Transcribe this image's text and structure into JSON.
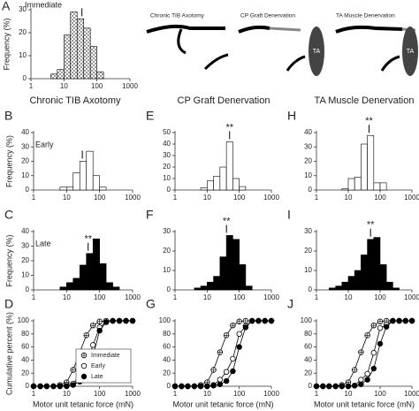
{
  "column_headers": [
    "Chronic TIB Axotomy",
    "CP Graft Denervation",
    "TA Muscle Denervation"
  ],
  "schematics": [
    {
      "title": "Chronic TIB Axotomy"
    },
    {
      "title": "CP Graft Denervation",
      "label": "TA"
    },
    {
      "title": "TA Muscle Denervation",
      "label": "TA"
    }
  ],
  "chart_data": [
    {
      "type": "histogram",
      "panel": "A",
      "label": "Immediate",
      "y_label": "Frequency (%)",
      "color": "#ffffff",
      "pattern": "crosshatch",
      "log_x": true,
      "bins": [
        1.6,
        2.5,
        4,
        6.3,
        10,
        15.8,
        25.1,
        39.8,
        63.1,
        100,
        158,
        251,
        398
      ],
      "values": [
        0,
        0,
        2,
        4,
        19,
        29,
        26,
        22,
        14,
        3,
        0,
        0
      ],
      "mean": 35,
      "xlim": [
        1,
        1000
      ],
      "xticks": [
        1,
        10,
        100,
        1000
      ],
      "ylim": [
        0,
        30
      ],
      "yticks": [
        0,
        10,
        20,
        30
      ]
    },
    {
      "type": "histogram",
      "panel": "B",
      "label": "Early",
      "y_label": "Frequency (%)",
      "color": "#ffffff",
      "log_x": true,
      "bins": [
        1.6,
        2.5,
        4,
        6.3,
        10,
        15.8,
        25.1,
        39.8,
        63.1,
        100,
        158,
        251,
        398
      ],
      "values": [
        0,
        0,
        0,
        2,
        2,
        12,
        20,
        27,
        10,
        2,
        0,
        0
      ],
      "mean": 30,
      "xlim": [
        1,
        1000
      ],
      "xticks": [
        1,
        10,
        100,
        1000
      ],
      "ylim": [
        0,
        40
      ],
      "yticks": [
        0,
        10,
        20,
        30,
        40
      ]
    },
    {
      "type": "histogram",
      "panel": "C",
      "label": "Late",
      "y_label": "Frequency (%)",
      "color": "#000000",
      "annotation": "**",
      "log_x": true,
      "bins": [
        1.6,
        2.5,
        4,
        6.3,
        10,
        15.8,
        25.1,
        39.8,
        63.1,
        100,
        158,
        251,
        398
      ],
      "values": [
        0,
        0,
        0,
        2,
        5,
        8,
        17,
        25,
        35,
        18,
        5,
        2
      ],
      "mean": 45,
      "xlim": [
        1,
        1000
      ],
      "xticks": [
        1,
        10,
        100,
        1000
      ],
      "ylim": [
        0,
        40
      ],
      "yticks": [
        0,
        10,
        20,
        30,
        40
      ]
    },
    {
      "type": "line",
      "panel": "D",
      "y_label": "Cumulative percent (%)",
      "x_label": "Motor unit tetanic force (mN)",
      "log_x": true,
      "legend": "bottom-right",
      "x": [
        1,
        1.6,
        2.5,
        4,
        6.3,
        10,
        15.8,
        25.1,
        39.8,
        63.1,
        100,
        158,
        251,
        398,
        631,
        1000
      ],
      "series": [
        {
          "name": "Immediate",
          "marker": "crossed",
          "color": "#000000",
          "values": [
            0,
            0,
            0,
            0,
            2,
            6,
            25,
            52,
            78,
            93,
            99,
            100,
            100,
            100,
            100,
            100
          ]
        },
        {
          "name": "Early",
          "marker": "open",
          "color": "#000000",
          "values": [
            0,
            0,
            0,
            0,
            0,
            2,
            4,
            16,
            36,
            63,
            90,
            98,
            100,
            100,
            100,
            100
          ]
        },
        {
          "name": "Late",
          "marker": "filled",
          "color": "#000000",
          "values": [
            0,
            0,
            0,
            0,
            0,
            0,
            2,
            7,
            17,
            46,
            85,
            98,
            100,
            100,
            100,
            100
          ]
        }
      ],
      "xlim": [
        1,
        1000
      ],
      "xticks": [
        1,
        10,
        100,
        1000
      ],
      "ylim": [
        0,
        100
      ],
      "yticks": [
        0,
        20,
        40,
        60,
        80,
        100
      ]
    },
    {
      "type": "histogram",
      "panel": "E",
      "color": "#ffffff",
      "annotation": "**",
      "log_x": true,
      "bins": [
        1.6,
        2.5,
        4,
        6.3,
        10,
        15.8,
        25.1,
        39.8,
        63.1,
        100,
        158,
        251,
        398
      ],
      "values": [
        0,
        0,
        0,
        2,
        8,
        12,
        20,
        42,
        10,
        3,
        0,
        0
      ],
      "mean": 50,
      "xlim": [
        1,
        1000
      ],
      "xticks": [
        1,
        10,
        100,
        1000
      ],
      "ylim": [
        0,
        50
      ],
      "yticks": [
        0,
        10,
        20,
        30,
        40,
        50
      ]
    },
    {
      "type": "histogram",
      "panel": "F",
      "color": "#000000",
      "annotation": "**",
      "log_x": true,
      "bins": [
        1.6,
        2.5,
        4,
        6.3,
        10,
        15.8,
        25.1,
        39.8,
        63.1,
        100,
        158,
        251,
        398
      ],
      "values": [
        0,
        0,
        1,
        2,
        4,
        7,
        17,
        28,
        26,
        13,
        2,
        0
      ],
      "mean": 40,
      "xlim": [
        1,
        1000
      ],
      "xticks": [
        1,
        10,
        100,
        1000
      ],
      "ylim": [
        0,
        30
      ],
      "yticks": [
        0,
        10,
        20,
        30
      ]
    },
    {
      "type": "line",
      "panel": "G",
      "x_label": "Motor unit tetanic force (mN)",
      "log_x": true,
      "x": [
        1,
        1.6,
        2.5,
        4,
        6.3,
        10,
        15.8,
        25.1,
        39.8,
        63.1,
        100,
        158,
        251,
        398,
        631,
        1000
      ],
      "series": [
        {
          "marker": "crossed",
          "color": "#000000",
          "values": [
            0,
            0,
            0,
            0,
            2,
            6,
            25,
            52,
            78,
            93,
            99,
            100,
            100,
            100,
            100,
            100
          ]
        },
        {
          "marker": "open",
          "color": "#000000",
          "values": [
            0,
            0,
            0,
            0,
            0,
            0,
            2,
            10,
            22,
            42,
            80,
            92,
            100,
            100,
            100,
            100
          ]
        },
        {
          "marker": "filled",
          "color": "#000000",
          "values": [
            0,
            0,
            0,
            0,
            0,
            0,
            1,
            3,
            8,
            23,
            60,
            90,
            100,
            100,
            100,
            100
          ]
        }
      ],
      "xlim": [
        1,
        1000
      ],
      "xticks": [
        1,
        10,
        100,
        1000
      ],
      "ylim": [
        0,
        100
      ],
      "yticks": [
        0,
        20,
        40,
        60,
        80,
        100
      ]
    },
    {
      "type": "histogram",
      "panel": "H",
      "color": "#ffffff",
      "annotation": "**",
      "log_x": true,
      "bins": [
        1.6,
        2.5,
        4,
        6.3,
        10,
        15.8,
        25.1,
        39.8,
        63.1,
        100,
        158,
        251,
        398
      ],
      "values": [
        0,
        0,
        0,
        1,
        8,
        9,
        32,
        38,
        5,
        5,
        0,
        0
      ],
      "mean": 45,
      "xlim": [
        1,
        1000
      ],
      "xticks": [
        1,
        10,
        100,
        1000
      ],
      "ylim": [
        0,
        40
      ],
      "yticks": [
        0,
        10,
        20,
        30,
        40
      ]
    },
    {
      "type": "histogram",
      "panel": "I",
      "color": "#000000",
      "annotation": "**",
      "log_x": true,
      "bins": [
        1.6,
        2.5,
        4,
        6.3,
        10,
        15.8,
        25.1,
        39.8,
        63.1,
        100,
        158,
        251,
        398
      ],
      "values": [
        0,
        1,
        2,
        4,
        7,
        10,
        18,
        26,
        27,
        13,
        4,
        1
      ],
      "mean": 50,
      "xlim": [
        1,
        1000
      ],
      "xticks": [
        1,
        10,
        100,
        1000
      ],
      "ylim": [
        0,
        30
      ],
      "yticks": [
        0,
        10,
        20,
        30
      ]
    },
    {
      "type": "line",
      "panel": "J",
      "x_label": "Motor unit tetanic force (mN)",
      "log_x": true,
      "x": [
        1,
        1.6,
        2.5,
        4,
        6.3,
        10,
        15.8,
        25.1,
        39.8,
        63.1,
        100,
        158,
        251,
        398,
        631,
        1000
      ],
      "series": [
        {
          "marker": "crossed",
          "color": "#000000",
          "values": [
            0,
            0,
            0,
            0,
            2,
            6,
            25,
            52,
            78,
            93,
            99,
            100,
            100,
            100,
            100,
            100
          ]
        },
        {
          "marker": "open",
          "color": "#000000",
          "values": [
            0,
            0,
            0,
            0,
            0,
            0,
            1,
            10,
            19,
            51,
            89,
            94,
            100,
            100,
            100,
            100
          ]
        },
        {
          "marker": "filled",
          "color": "#000000",
          "values": [
            0,
            0,
            0,
            0,
            0,
            0,
            1,
            3,
            10,
            27,
            65,
            91,
            100,
            100,
            100,
            100
          ]
        }
      ],
      "xlim": [
        1,
        1000
      ],
      "xticks": [
        1,
        10,
        100,
        1000
      ],
      "ylim": [
        0,
        100
      ],
      "yticks": [
        0,
        20,
        40,
        60,
        80,
        100
      ]
    }
  ]
}
